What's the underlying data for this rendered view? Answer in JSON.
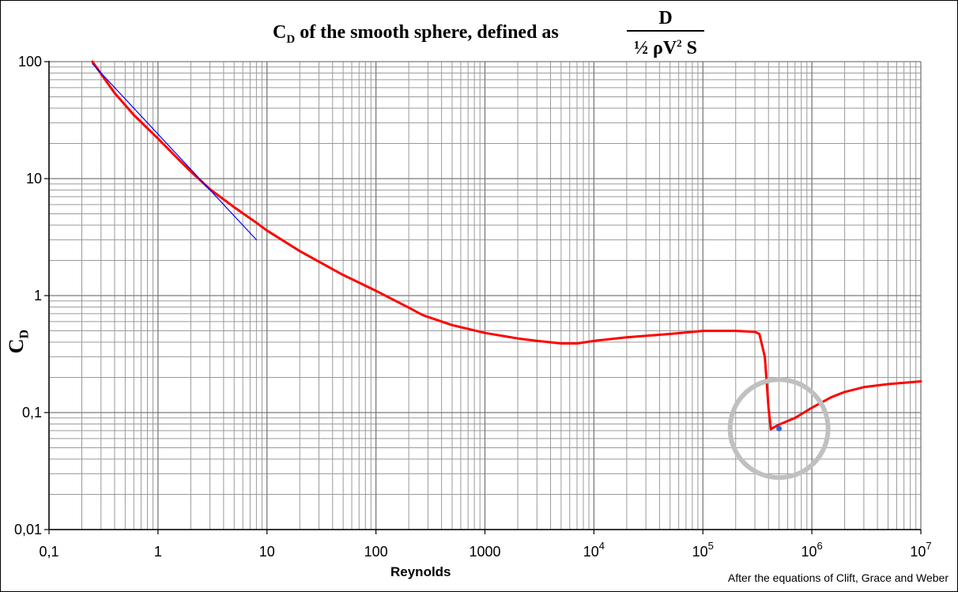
{
  "chart_data": {
    "type": "line",
    "title": {
      "prefix": "C",
      "prefix_sub": "D",
      "text": " of the smooth sphere, defined as",
      "fraction_numerator": "D",
      "fraction_denominator_prefix": "½ ρV",
      "fraction_denominator_sup": "2",
      "fraction_denominator_suffix": " S"
    },
    "xlabel": "Reynolds",
    "ylabel": {
      "main": "C",
      "sub": "D"
    },
    "footnote": "After the equations of Clift, Grace  and  Weber",
    "x_scale": "log",
    "y_scale": "log",
    "xlim": [
      0.1,
      10000000
    ],
    "ylim": [
      0.01,
      100
    ],
    "grid": true,
    "x_ticks": [
      {
        "label": "0,1"
      },
      {
        "label": "1"
      },
      {
        "label": "10"
      },
      {
        "label": "100"
      },
      {
        "label": "1000"
      },
      {
        "label": "10",
        "sup": "4"
      },
      {
        "label": "10",
        "sup": "5"
      },
      {
        "label": "10",
        "sup": "6"
      },
      {
        "label": "10",
        "sup": "7"
      }
    ],
    "y_ticks": [
      "0,01",
      "0,1",
      "1",
      "10",
      "100"
    ],
    "series": [
      {
        "color": "#ff0000",
        "x": [
          0.25,
          0.4,
          0.6,
          1,
          1.5,
          2,
          3,
          5,
          8,
          10,
          20,
          50,
          100,
          200,
          270,
          500,
          1000,
          2000,
          3000,
          5000,
          7000,
          10000,
          20000,
          50000,
          100000,
          200000,
          300000,
          330000,
          370000,
          400000,
          420000,
          450000,
          500000,
          700000,
          1000000,
          1500000,
          2000000,
          3000000,
          5000000,
          10000000
        ],
        "y": [
          100,
          54,
          35,
          22,
          15,
          11.5,
          8.1,
          5.7,
          4.2,
          3.6,
          2.4,
          1.5,
          1.1,
          0.79,
          0.68,
          0.56,
          0.48,
          0.43,
          0.41,
          0.39,
          0.39,
          0.41,
          0.44,
          0.47,
          0.5,
          0.5,
          0.49,
          0.47,
          0.3,
          0.11,
          0.072,
          0.075,
          0.079,
          0.09,
          0.11,
          0.135,
          0.15,
          0.165,
          0.175,
          0.185
        ]
      },
      {
        "color": "#0000ff",
        "x": [
          0.25,
          8
        ],
        "y": [
          96,
          3
        ]
      }
    ],
    "annotations": [
      {
        "type": "circle",
        "color": "#c0c0c0",
        "x": 500000,
        "y": 0.073
      },
      {
        "type": "point",
        "color": "#3366cc",
        "x": 500000,
        "y": 0.073
      }
    ]
  }
}
